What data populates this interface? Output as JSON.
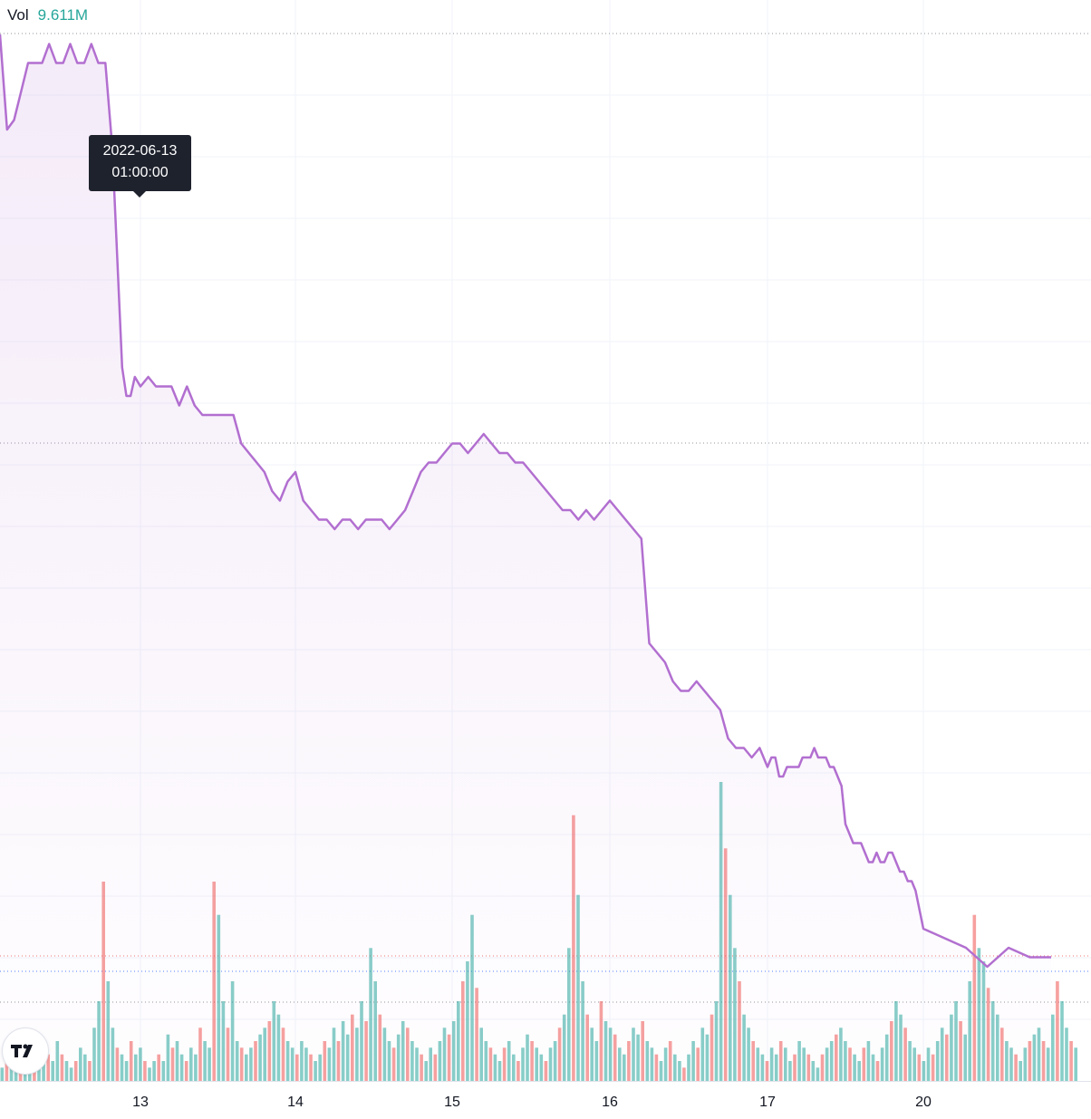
{
  "legend": {
    "label": "Vol",
    "value": "9.611M"
  },
  "tooltip": {
    "date": "2022-06-13",
    "time": "01:00:00"
  },
  "logo": {
    "icon": "tradingview-logo-icon"
  },
  "colors": {
    "line": "#b26fd0",
    "up": "#26a69a",
    "down": "#ef5350",
    "grid": "#f0f3fa"
  },
  "chart_data": [
    {
      "type": "area",
      "x_tick_labels": [
        "13",
        "14",
        "15",
        "16",
        "17",
        "20"
      ],
      "grid": true,
      "points": [
        [
          12.0,
          100
        ],
        [
          12.05,
          90
        ],
        [
          12.1,
          91
        ],
        [
          12.15,
          94
        ],
        [
          12.2,
          97
        ],
        [
          12.25,
          97
        ],
        [
          12.3,
          97
        ],
        [
          12.35,
          99
        ],
        [
          12.4,
          97
        ],
        [
          12.45,
          97
        ],
        [
          12.5,
          99
        ],
        [
          12.55,
          97
        ],
        [
          12.6,
          97
        ],
        [
          12.65,
          99
        ],
        [
          12.7,
          97
        ],
        [
          12.75,
          97
        ],
        [
          12.8,
          88
        ],
        [
          12.87,
          65
        ],
        [
          12.9,
          62
        ],
        [
          12.93,
          62
        ],
        [
          12.96,
          64
        ],
        [
          13.0,
          63
        ],
        [
          13.05,
          64
        ],
        [
          13.1,
          63
        ],
        [
          13.15,
          63
        ],
        [
          13.2,
          63
        ],
        [
          13.25,
          61
        ],
        [
          13.3,
          63
        ],
        [
          13.35,
          61
        ],
        [
          13.4,
          60
        ],
        [
          13.45,
          60
        ],
        [
          13.5,
          60
        ],
        [
          13.55,
          60
        ],
        [
          13.6,
          60
        ],
        [
          13.65,
          57
        ],
        [
          13.7,
          56
        ],
        [
          13.75,
          55
        ],
        [
          13.8,
          54
        ],
        [
          13.85,
          52
        ],
        [
          13.9,
          51
        ],
        [
          13.95,
          53
        ],
        [
          14.0,
          54
        ],
        [
          14.05,
          51
        ],
        [
          14.1,
          50
        ],
        [
          14.15,
          49
        ],
        [
          14.2,
          49
        ],
        [
          14.25,
          48
        ],
        [
          14.3,
          49
        ],
        [
          14.35,
          49
        ],
        [
          14.4,
          48
        ],
        [
          14.45,
          49
        ],
        [
          14.5,
          49
        ],
        [
          14.55,
          49
        ],
        [
          14.6,
          48
        ],
        [
          14.65,
          49
        ],
        [
          14.7,
          50
        ],
        [
          14.75,
          52
        ],
        [
          14.8,
          54
        ],
        [
          14.85,
          55
        ],
        [
          14.9,
          55
        ],
        [
          14.95,
          56
        ],
        [
          15.0,
          57
        ],
        [
          15.05,
          57
        ],
        [
          15.1,
          56
        ],
        [
          15.15,
          57
        ],
        [
          15.2,
          58
        ],
        [
          15.25,
          57
        ],
        [
          15.3,
          56
        ],
        [
          15.35,
          56
        ],
        [
          15.4,
          55
        ],
        [
          15.45,
          55
        ],
        [
          15.5,
          54
        ],
        [
          15.55,
          53
        ],
        [
          15.6,
          52
        ],
        [
          15.65,
          51
        ],
        [
          15.7,
          50
        ],
        [
          15.75,
          50
        ],
        [
          15.8,
          49
        ],
        [
          15.85,
          50
        ],
        [
          15.9,
          49
        ],
        [
          15.95,
          50
        ],
        [
          16.0,
          51
        ],
        [
          16.05,
          50
        ],
        [
          16.1,
          49
        ],
        [
          16.15,
          48
        ],
        [
          16.2,
          47
        ],
        [
          16.25,
          36
        ],
        [
          16.3,
          35
        ],
        [
          16.35,
          34
        ],
        [
          16.4,
          32
        ],
        [
          16.45,
          31
        ],
        [
          16.5,
          31
        ],
        [
          16.55,
          32
        ],
        [
          16.6,
          31
        ],
        [
          16.65,
          30
        ],
        [
          16.7,
          29
        ],
        [
          16.75,
          26
        ],
        [
          16.8,
          25
        ],
        [
          16.85,
          25
        ],
        [
          16.9,
          24
        ],
        [
          16.95,
          25
        ],
        [
          17.0,
          23
        ],
        [
          17.05,
          24
        ],
        [
          17.1,
          24
        ],
        [
          17.15,
          22
        ],
        [
          17.2,
          22
        ],
        [
          17.25,
          23
        ],
        [
          17.3,
          23
        ],
        [
          17.35,
          23
        ],
        [
          17.4,
          23
        ],
        [
          17.45,
          24
        ],
        [
          17.5,
          24
        ],
        [
          17.55,
          24
        ],
        [
          17.6,
          25
        ],
        [
          17.65,
          24
        ],
        [
          17.7,
          24
        ],
        [
          17.75,
          24
        ],
        [
          17.8,
          23
        ],
        [
          17.85,
          23
        ],
        [
          17.9,
          22
        ],
        [
          17.95,
          21
        ],
        [
          18.0,
          17
        ],
        [
          18.05,
          16
        ],
        [
          18.1,
          15
        ],
        [
          18.15,
          15
        ],
        [
          18.2,
          15
        ],
        [
          18.25,
          14
        ],
        [
          18.3,
          13
        ],
        [
          18.35,
          13
        ],
        [
          18.4,
          14
        ],
        [
          18.45,
          13
        ],
        [
          18.5,
          13
        ],
        [
          18.55,
          14
        ],
        [
          18.6,
          14
        ],
        [
          18.65,
          13
        ],
        [
          18.7,
          12
        ],
        [
          18.75,
          12
        ],
        [
          18.8,
          11
        ],
        [
          18.85,
          11
        ],
        [
          18.9,
          10
        ],
        [
          18.95,
          8
        ],
        [
          19.0,
          6
        ],
        [
          19.05,
          5
        ],
        [
          19.1,
          4
        ],
        [
          19.15,
          2
        ],
        [
          19.2,
          4
        ],
        [
          19.25,
          3
        ],
        [
          19.3,
          3
        ]
      ]
    },
    {
      "type": "bar",
      "name": "Vol",
      "values": [
        2,
        3,
        2,
        4,
        3,
        2,
        5,
        3,
        2,
        3,
        4,
        3,
        6,
        4,
        3,
        2,
        3,
        5,
        4,
        3,
        8,
        12,
        30,
        15,
        8,
        5,
        4,
        3,
        6,
        4,
        5,
        3,
        2,
        3,
        4,
        3,
        7,
        5,
        6,
        4,
        3,
        5,
        4,
        8,
        6,
        5,
        30,
        25,
        12,
        8,
        15,
        6,
        5,
        4,
        5,
        6,
        7,
        8,
        9,
        12,
        10,
        8,
        6,
        5,
        4,
        6,
        5,
        4,
        3,
        4,
        6,
        5,
        8,
        6,
        9,
        7,
        10,
        8,
        12,
        9,
        20,
        15,
        10,
        8,
        6,
        5,
        7,
        9,
        8,
        6,
        5,
        4,
        3,
        5,
        4,
        6,
        8,
        7,
        9,
        12,
        15,
        18,
        25,
        14,
        8,
        6,
        5,
        4,
        3,
        5,
        6,
        4,
        3,
        5,
        7,
        6,
        5,
        4,
        3,
        5,
        6,
        8,
        10,
        20,
        40,
        28,
        15,
        10,
        8,
        6,
        12,
        9,
        8,
        7,
        5,
        4,
        6,
        8,
        7,
        9,
        6,
        5,
        4,
        3,
        5,
        6,
        4,
        3,
        2,
        4,
        6,
        5,
        8,
        7,
        10,
        12,
        45,
        35,
        28,
        20,
        15,
        10,
        8,
        6,
        5,
        4,
        3,
        5,
        4,
        6,
        5,
        3,
        4,
        6,
        5,
        4,
        3,
        2,
        4,
        5,
        6,
        7,
        8,
        6,
        5,
        4,
        3,
        5,
        6,
        4,
        3,
        5,
        7,
        9,
        12,
        10,
        8,
        6,
        5,
        4,
        3,
        5,
        4,
        6,
        8,
        7,
        10,
        12,
        9,
        7,
        15,
        25,
        20,
        18,
        14,
        12,
        10,
        8,
        6,
        5,
        4,
        3,
        5,
        6,
        7,
        8,
        6,
        5,
        10,
        15,
        12,
        8,
        6,
        5
      ],
      "colors": [
        "up",
        "down"
      ]
    }
  ]
}
